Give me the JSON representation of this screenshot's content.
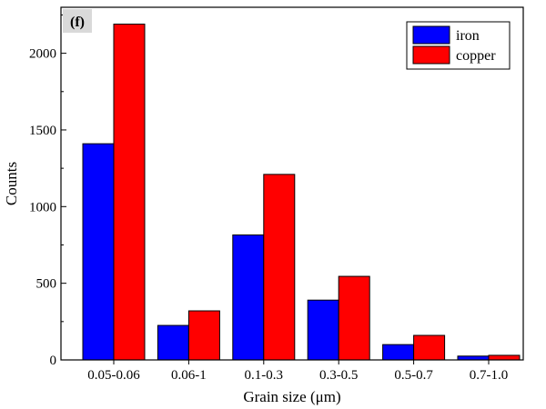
{
  "chart_data": {
    "type": "bar",
    "panel_label": "(f)",
    "xlabel": "Grain size (μm)",
    "ylabel": "Counts",
    "ylim": [
      0,
      2300
    ],
    "yticks": [
      0,
      500,
      1000,
      1500,
      2000
    ],
    "categories": [
      "0.05-0.06",
      "0.06-1",
      "0.1-0.3",
      "0.3-0.5",
      "0.5-0.7",
      "0.7-1.0"
    ],
    "series": [
      {
        "name": "iron",
        "color": "#0000ff",
        "values": [
          1410,
          225,
          815,
          390,
          100,
          25
        ]
      },
      {
        "name": "copper",
        "color": "#ff0000",
        "values": [
          2190,
          320,
          1210,
          545,
          160,
          30
        ]
      }
    ],
    "legend": "top-right",
    "grid": false
  }
}
